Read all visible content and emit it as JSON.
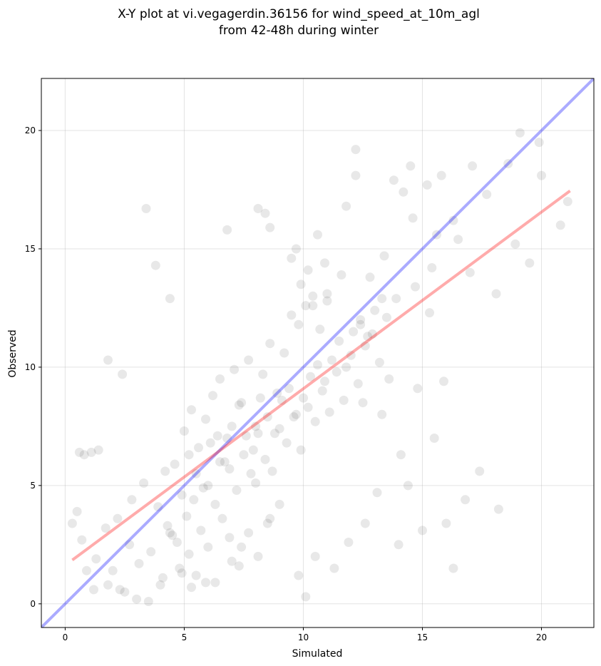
{
  "chart_data": {
    "type": "scatter",
    "title": "X-Y plot at vi.vegagerdin.36156 for wind_speed_at_10m_agl",
    "subtitle": "from 42-48h during winter",
    "xlabel": "Simulated",
    "ylabel": "Observed",
    "xlim": [
      -1.0,
      22.2
    ],
    "ylim": [
      -1.0,
      22.2
    ],
    "xticks": [
      0,
      5,
      10,
      15,
      20
    ],
    "yticks": [
      0,
      5,
      10,
      15,
      20
    ],
    "grid": true,
    "point_color": "#000000",
    "point_alpha": 0.09,
    "reference_lines": [
      {
        "kind": "identity",
        "color": "#0000ff",
        "x": [
          -1.0,
          22.2
        ],
        "y": [
          -1.0,
          22.2
        ]
      },
      {
        "kind": "regression",
        "color": "#ff0000",
        "x": [
          0.3,
          21.2
        ],
        "y": [
          1.85,
          17.45
        ]
      }
    ],
    "points": {
      "x": [
        3.4,
        3.8,
        4.4,
        8.1,
        8.4,
        8.6,
        6.8,
        12.2,
        19.1,
        19.9,
        12.2,
        13.8,
        14.5,
        15.2,
        15.8,
        17.1,
        18.6,
        20.0,
        21.1,
        20.8,
        18.9,
        17.7,
        19.5,
        16.3,
        15.6,
        14.6,
        14.2,
        16.5,
        17.0,
        18.1,
        9.7,
        9.5,
        11.8,
        10.6,
        1.8,
        2.4,
        0.6,
        0.8,
        1.1,
        1.4,
        0.3,
        0.5,
        0.9,
        1.2,
        1.8,
        2.0,
        2.5,
        3.0,
        3.5,
        4.0,
        2.2,
        2.8,
        3.3,
        3.9,
        4.2,
        4.6,
        4.9,
        5.2,
        5.5,
        5.8,
        6.1,
        6.4,
        6.7,
        7.0,
        7.3,
        7.6,
        7.9,
        8.2,
        8.5,
        8.8,
        9.1,
        9.4,
        9.7,
        10.0,
        10.3,
        10.6,
        10.9,
        11.2,
        11.5,
        11.8,
        12.1,
        12.4,
        12.7,
        13.0,
        13.3,
        4.3,
        4.7,
        5.1,
        5.4,
        5.7,
        6.0,
        6.3,
        6.6,
        6.9,
        7.2,
        7.5,
        7.8,
        8.1,
        8.4,
        8.7,
        9.0,
        9.3,
        9.6,
        9.9,
        10.2,
        10.5,
        10.8,
        11.1,
        11.4,
        11.7,
        12.0,
        12.3,
        12.6,
        12.9,
        13.2,
        13.5,
        5.0,
        5.3,
        5.6,
        5.9,
        6.2,
        6.5,
        6.8,
        7.1,
        7.4,
        7.7,
        8.0,
        8.3,
        8.6,
        8.9,
        9.2,
        9.5,
        9.8,
        10.1,
        10.4,
        10.7,
        11.0,
        4.8,
        5.2,
        5.5,
        6.0,
        6.3,
        6.9,
        7.3,
        7.7,
        8.1,
        8.5,
        3.6,
        4.1,
        4.5,
        3.1,
        2.7,
        2.3,
        1.7,
        1.3,
        0.7,
        9.8,
        10.1,
        10.5,
        11.3,
        11.9,
        12.6,
        13.1,
        14.0,
        14.4,
        15.0,
        15.5,
        16.0,
        16.8,
        17.4,
        18.2,
        9.0,
        8.6,
        8.0,
        7.4,
        7.0,
        6.5,
        5.9,
        5.3,
        4.9,
        4.4,
        12.4,
        12.8,
        13.4,
        13.9,
        14.7,
        15.3,
        11.6,
        11.0,
        10.4,
        9.9,
        10.2,
        10.9,
        16.3,
        15.4,
        14.1,
        13.3,
        12.5,
        13.6,
        14.8,
        15.9
      ],
      "y": [
        16.7,
        14.3,
        12.9,
        16.7,
        16.5,
        15.9,
        15.8,
        19.2,
        19.9,
        19.5,
        18.1,
        17.9,
        18.5,
        17.7,
        18.1,
        18.5,
        18.6,
        18.1,
        17.0,
        16.0,
        15.2,
        17.3,
        14.4,
        16.2,
        15.6,
        16.3,
        17.4,
        15.4,
        14.0,
        13.1,
        15.0,
        14.6,
        16.8,
        15.6,
        10.3,
        9.7,
        6.4,
        6.3,
        6.4,
        6.5,
        3.4,
        3.9,
        1.4,
        0.6,
        0.8,
        1.4,
        0.5,
        0.2,
        0.1,
        0.8,
        3.6,
        4.4,
        5.1,
        4.1,
        5.6,
        5.9,
        4.6,
        6.3,
        5.5,
        4.9,
        6.8,
        7.1,
        6.0,
        7.5,
        8.4,
        7.1,
        6.5,
        8.7,
        7.9,
        7.2,
        8.6,
        9.1,
        8.0,
        8.7,
        9.6,
        10.1,
        9.4,
        10.3,
        11.1,
        10.0,
        11.5,
        12.0,
        11.3,
        12.4,
        12.9,
        3.3,
        2.6,
        3.7,
        4.4,
        3.1,
        5.0,
        4.2,
        3.6,
        5.7,
        4.8,
        6.3,
        5.5,
        7.2,
        6.1,
        5.6,
        7.4,
        6.8,
        7.9,
        6.5,
        8.3,
        7.7,
        9.0,
        8.1,
        9.8,
        8.6,
        10.5,
        9.3,
        10.9,
        11.4,
        10.2,
        12.1,
        7.3,
        8.2,
        6.6,
        7.8,
        8.8,
        9.5,
        7.0,
        9.9,
        8.5,
        10.3,
        7.5,
        9.7,
        11.0,
        8.9,
        10.6,
        12.2,
        11.8,
        12.6,
        13.0,
        11.6,
        12.8,
        1.5,
        2.1,
        1.2,
        2.4,
        0.9,
        2.8,
        1.6,
        3.0,
        2.0,
        3.4,
        2.2,
        1.1,
        2.9,
        1.7,
        2.5,
        0.6,
        3.2,
        1.9,
        2.7,
        1.2,
        0.3,
        2.0,
        1.5,
        2.6,
        3.4,
        4.7,
        2.5,
        5.0,
        3.1,
        7.0,
        3.4,
        4.4,
        5.6,
        4.0,
        4.2,
        3.6,
        5.1,
        2.4,
        1.8,
        6.0,
        0.9,
        0.7,
        1.3,
        3.0,
        11.8,
        13.8,
        14.7,
        12.9,
        13.4,
        12.3,
        13.9,
        13.1,
        12.6,
        13.5,
        14.1,
        14.4,
        1.5,
        14.2,
        6.3,
        8.0,
        8.5,
        9.5,
        9.1,
        9.4
      ]
    }
  }
}
